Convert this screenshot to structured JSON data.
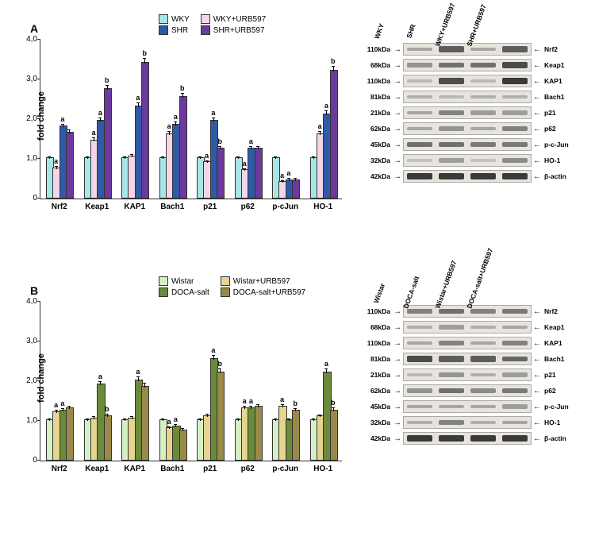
{
  "panels": [
    {
      "id": "A",
      "ylabel": "fold change",
      "ylim": [
        0,
        4.0
      ],
      "yticks": [
        0,
        1.0,
        2.0,
        3.0,
        4.0
      ],
      "legend": [
        {
          "label": "WKY",
          "color": "#a8e6e6"
        },
        {
          "label": "WKY+URB597",
          "color": "#f5d6e8"
        },
        {
          "label": "SHR",
          "color": "#2e5aa8"
        },
        {
          "label": "SHR+URB597",
          "color": "#6b3a9c"
        }
      ],
      "categories": [
        "Nrf2",
        "Keap1",
        "KAP1",
        "Bach1",
        "p21",
        "p62",
        "p-cJun",
        "HO-1"
      ],
      "values": [
        [
          1.0,
          0.75,
          1.8,
          1.65
        ],
        [
          1.0,
          1.45,
          1.95,
          2.75
        ],
        [
          1.0,
          1.05,
          2.3,
          3.4
        ],
        [
          1.0,
          1.6,
          1.85,
          2.55
        ],
        [
          1.0,
          0.9,
          1.95,
          1.25
        ],
        [
          1.0,
          0.7,
          1.25,
          1.25
        ],
        [
          1.0,
          0.4,
          0.45,
          0.45
        ],
        [
          1.0,
          1.6,
          2.1,
          3.2
        ]
      ],
      "errors": [
        [
          0.05,
          0.05,
          0.07,
          0.08
        ],
        [
          0.05,
          0.08,
          0.08,
          0.1
        ],
        [
          0.05,
          0.05,
          0.1,
          0.12
        ],
        [
          0.05,
          0.08,
          0.08,
          0.1
        ],
        [
          0.04,
          0.05,
          0.08,
          0.06
        ],
        [
          0.04,
          0.05,
          0.06,
          0.06
        ],
        [
          0.04,
          0.04,
          0.05,
          0.05
        ],
        [
          0.05,
          0.08,
          0.1,
          0.12
        ]
      ],
      "sig": [
        [
          "",
          "a",
          "a",
          ""
        ],
        [
          "",
          "a",
          "a",
          "b"
        ],
        [
          "",
          "",
          "a",
          "b"
        ],
        [
          "",
          "a",
          "a",
          "b"
        ],
        [
          "",
          "a",
          "a",
          "b"
        ],
        [
          "",
          "a",
          "a",
          ""
        ],
        [
          "",
          "a",
          "a",
          ""
        ],
        [
          "",
          "a",
          "a",
          "b"
        ]
      ],
      "blot": {
        "columns": [
          "WKY",
          "SHR",
          "WKY+URB597",
          "SHR+URB597"
        ],
        "rows": [
          {
            "kda": "110kDa",
            "name": "Nrf2",
            "intensity": [
              0.3,
              0.7,
              0.3,
              0.7
            ]
          },
          {
            "kda": "68kDa",
            "name": "Keap1",
            "intensity": [
              0.4,
              0.6,
              0.6,
              0.8
            ]
          },
          {
            "kda": "110kDa",
            "name": "KAP1",
            "intensity": [
              0.2,
              0.8,
              0.2,
              0.9
            ]
          },
          {
            "kda": "81kDa",
            "name": "Bach1",
            "intensity": [
              0.25,
              0.2,
              0.25,
              0.25
            ]
          },
          {
            "kda": "21kDa",
            "name": "p21",
            "intensity": [
              0.3,
              0.5,
              0.35,
              0.35
            ]
          },
          {
            "kda": "62kDa",
            "name": "p62",
            "intensity": [
              0.3,
              0.4,
              0.3,
              0.5
            ]
          },
          {
            "kda": "45kDa",
            "name": "p-c-Jun",
            "intensity": [
              0.6,
              0.6,
              0.55,
              0.55
            ]
          },
          {
            "kda": "32kDa",
            "name": "HO-1",
            "intensity": [
              0.15,
              0.35,
              0.15,
              0.45
            ]
          },
          {
            "kda": "42kDa",
            "name": "β-actin",
            "intensity": [
              0.9,
              0.9,
              0.9,
              0.9
            ]
          }
        ]
      }
    },
    {
      "id": "B",
      "ylabel": "fold change",
      "ylim": [
        0,
        4.0
      ],
      "yticks": [
        0,
        1.0,
        2.0,
        3.0,
        4.0
      ],
      "legend": [
        {
          "label": "Wistar",
          "color": "#d4f0c4"
        },
        {
          "label": "Wistar+URB597",
          "color": "#e6d48f"
        },
        {
          "label": "DOCA-salt",
          "color": "#6b8a3a"
        },
        {
          "label": "DOCA-salt+URB597",
          "color": "#9a8a4a"
        }
      ],
      "categories": [
        "Nrf2",
        "Keap1",
        "KAP1",
        "Bach1",
        "p21",
        "p62",
        "p-cJun",
        "HO-1"
      ],
      "values": [
        [
          1.0,
          1.2,
          1.25,
          1.3
        ],
        [
          1.0,
          1.05,
          1.9,
          1.1
        ],
        [
          1.0,
          1.05,
          2.0,
          1.85
        ],
        [
          1.0,
          0.8,
          0.85,
          0.75
        ],
        [
          1.0,
          1.1,
          2.55,
          2.2
        ],
        [
          1.0,
          1.3,
          1.3,
          1.35
        ],
        [
          1.0,
          1.35,
          1.0,
          1.25
        ],
        [
          1.0,
          1.1,
          2.2,
          1.25
        ]
      ],
      "errors": [
        [
          0.05,
          0.06,
          0.06,
          0.06
        ],
        [
          0.05,
          0.05,
          0.08,
          0.06
        ],
        [
          0.05,
          0.05,
          0.1,
          0.1
        ],
        [
          0.05,
          0.05,
          0.05,
          0.05
        ],
        [
          0.05,
          0.06,
          0.1,
          0.1
        ],
        [
          0.05,
          0.06,
          0.06,
          0.06
        ],
        [
          0.05,
          0.06,
          0.05,
          0.06
        ],
        [
          0.05,
          0.05,
          0.1,
          0.07
        ]
      ],
      "sig": [
        [
          "",
          "a",
          "a",
          ""
        ],
        [
          "",
          "",
          "a",
          "b"
        ],
        [
          "",
          "",
          "a",
          ""
        ],
        [
          "",
          "a",
          "a",
          ""
        ],
        [
          "",
          "",
          "a",
          "b"
        ],
        [
          "",
          "a",
          "a",
          ""
        ],
        [
          "",
          "a",
          "",
          "b"
        ],
        [
          "",
          "",
          "a",
          "b"
        ]
      ],
      "blot": {
        "columns": [
          "Wistar",
          "DOCA-salt",
          "Wistar+URB597",
          "DOCA-salt+URB597"
        ],
        "rows": [
          {
            "kda": "110kDa",
            "name": "Nrf2",
            "intensity": [
              0.5,
              0.6,
              0.5,
              0.55
            ]
          },
          {
            "kda": "68kDa",
            "name": "Keap1",
            "intensity": [
              0.25,
              0.35,
              0.25,
              0.3
            ]
          },
          {
            "kda": "110kDa",
            "name": "KAP1",
            "intensity": [
              0.3,
              0.5,
              0.3,
              0.5
            ]
          },
          {
            "kda": "81kDa",
            "name": "Bach1",
            "intensity": [
              0.8,
              0.7,
              0.7,
              0.65
            ]
          },
          {
            "kda": "21kDa",
            "name": "p21",
            "intensity": [
              0.2,
              0.4,
              0.25,
              0.35
            ]
          },
          {
            "kda": "62kDa",
            "name": "p62",
            "intensity": [
              0.4,
              0.6,
              0.45,
              0.55
            ]
          },
          {
            "kda": "45kDa",
            "name": "p-c-Jun",
            "intensity": [
              0.3,
              0.3,
              0.3,
              0.35
            ]
          },
          {
            "kda": "32kDa",
            "name": "HO-1",
            "intensity": [
              0.25,
              0.5,
              0.25,
              0.3
            ]
          },
          {
            "kda": "42kDa",
            "name": "β-actin",
            "intensity": [
              0.9,
              0.9,
              0.9,
              0.9
            ]
          }
        ]
      }
    }
  ]
}
